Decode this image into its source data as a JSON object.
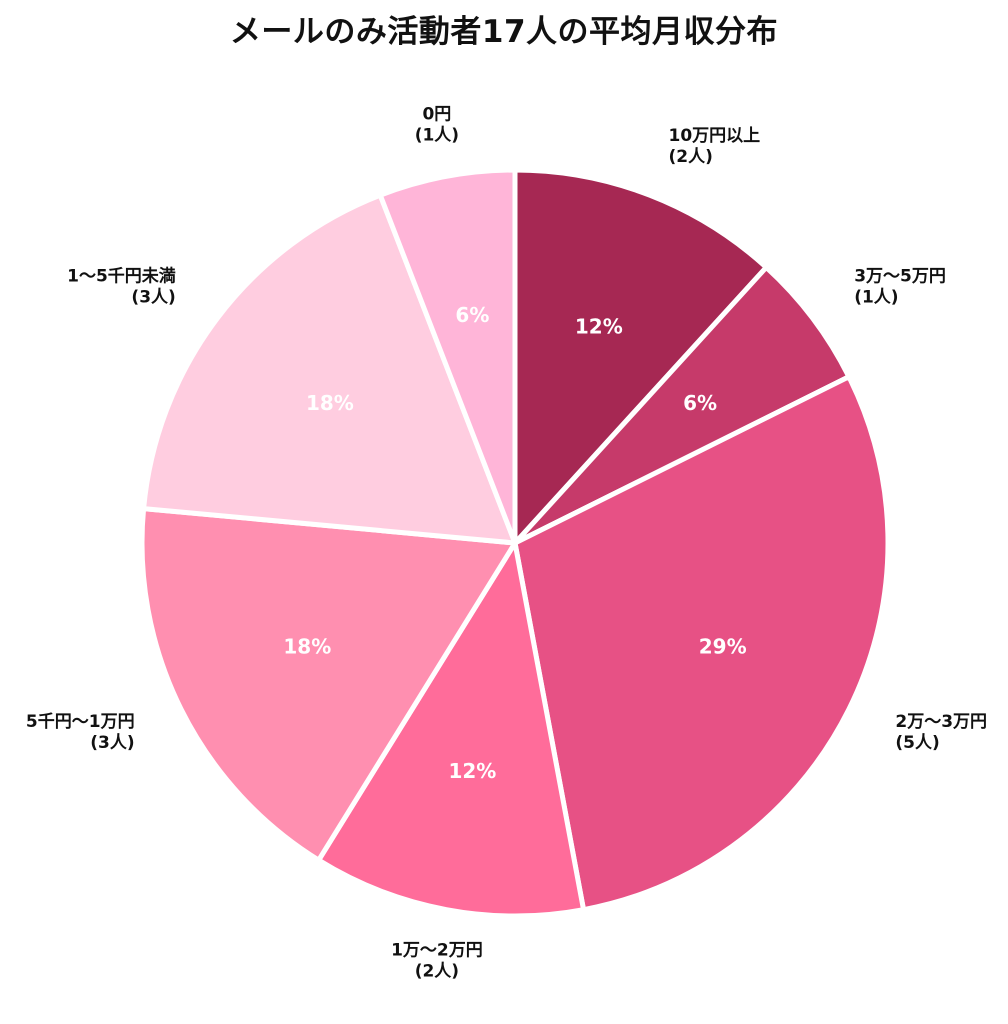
{
  "chart_data": {
    "type": "pie",
    "title": "メールのみ活動者17人の平均月収分布",
    "slices": [
      {
        "label": "10万円以上",
        "count_label": "(2人)",
        "percent_label": "12%",
        "count": 2,
        "color": "#A62853"
      },
      {
        "label": "3万～5万円",
        "count_label": "(1人)",
        "percent_label": "6%",
        "count": 1,
        "color": "#C63A6A"
      },
      {
        "label": "2万～3万円",
        "count_label": "(5人)",
        "percent_label": "29%",
        "count": 5,
        "color": "#E75185"
      },
      {
        "label": "1万～2万円",
        "count_label": "(2人)",
        "percent_label": "12%",
        "count": 2,
        "color": "#FF6C9A"
      },
      {
        "label": "5千円～1万円",
        "count_label": "(3人)",
        "percent_label": "18%",
        "count": 3,
        "color": "#FF8FB0"
      },
      {
        "label": "1～5千円未満",
        "count_label": "(3人)",
        "percent_label": "18%",
        "count": 3,
        "color": "#FFCDE0"
      },
      {
        "label": "0円",
        "count_label": "(1人)",
        "percent_label": "6%",
        "count": 1,
        "color": "#FFB5D8"
      }
    ]
  }
}
